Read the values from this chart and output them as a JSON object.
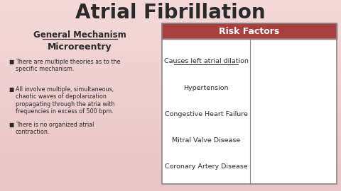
{
  "title": "Atrial Fibrillation",
  "title_fontsize": 20,
  "left_heading": "General Mechanism",
  "left_subheading": "Microreentry",
  "bullets": [
    "There are multiple theories as to the\nspecific mechanism.",
    "All involve multiple, simultaneous,\nchaotic waves of depolarization\npropagating through the atria with\nfrequencies in excess of 500 bpm.",
    "There is no organized atrial\ncontraction."
  ],
  "table_header": "Risk Factors",
  "table_header_bg": "#a84040",
  "table_header_color": "#ffffff",
  "table_col1_items": [
    "Causes left atrial dilation",
    "Hypertension",
    "Congestive Heart Failure",
    "Mitral Valve Disease",
    "Coronary Artery Disease"
  ],
  "table_border_color": "#888888",
  "text_color": "#2a2a2a",
  "bullet_char": "■"
}
